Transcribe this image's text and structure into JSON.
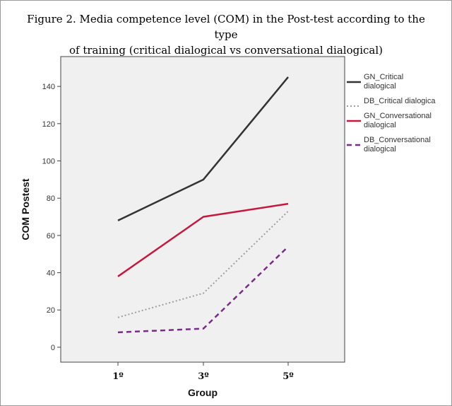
{
  "caption": {
    "line1": "Figure 2. Media competence level (COM) in the Post-test according to the type",
    "line2": "of training (critical dialogical vs conversational dialogical)"
  },
  "chart_data": {
    "type": "line",
    "categories": [
      "1º",
      "3º",
      "5º"
    ],
    "xlabel": "Group",
    "ylabel": "COM Postest",
    "ylim": [
      -8,
      156
    ],
    "yticks": [
      0,
      20,
      40,
      60,
      80,
      100,
      120,
      140
    ],
    "grid": false,
    "legend_position": "right",
    "series": [
      {
        "name": "GN_Critical dialogical",
        "legend_lines": [
          "GN_Critical",
          "dialogical"
        ],
        "values": [
          68,
          90,
          145
        ],
        "color": "#333333",
        "dash": "solid"
      },
      {
        "name": "DB_Critical dialogical",
        "legend_lines": [
          "DB_Critical dialogica"
        ],
        "values": [
          16,
          29,
          73
        ],
        "color": "#9e9e9e",
        "dash": "dotted"
      },
      {
        "name": "GN_Conversational dialogical",
        "legend_lines": [
          "GN_Conversational",
          "dialogical"
        ],
        "values": [
          38,
          70,
          77
        ],
        "color": "#c4183c",
        "dash": "solid"
      },
      {
        "name": "DB_Conversational dialogical",
        "legend_lines": [
          "DB_Conversational",
          "dialogical"
        ],
        "values": [
          8,
          10,
          54
        ],
        "color": "#7a2a8a",
        "dash": "dashed"
      }
    ]
  }
}
